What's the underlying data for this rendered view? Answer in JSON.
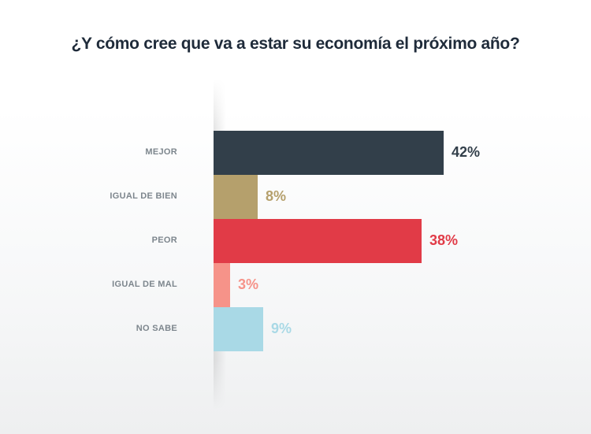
{
  "title": "¿Y cómo cree que va a estar su economía el próximo año?",
  "chart_data": {
    "type": "bar",
    "orientation": "horizontal",
    "title": "¿Y cómo cree que va a estar su economía el próximo año?",
    "xlabel": "",
    "ylabel": "",
    "categories": [
      "MEJOR",
      "IGUAL DE BIEN",
      "PEOR",
      "IGUAL DE MAL",
      "NO SABE"
    ],
    "values": [
      42,
      8,
      38,
      3,
      9
    ],
    "value_labels": [
      "42%",
      "8%",
      "38%",
      "3%",
      "9%"
    ],
    "colors": [
      "#323f4a",
      "#b5a06c",
      "#e13b47",
      "#f69389",
      "#a9d9e6"
    ],
    "unit": "%",
    "xlim": [
      0,
      42
    ],
    "grid": false,
    "legend": "none"
  }
}
